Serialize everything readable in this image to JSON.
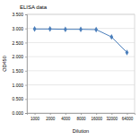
{
  "chart_data": {
    "type": "line",
    "title": "ELISA data",
    "x_label": "Dilution",
    "y_label": "OD450",
    "categories": [
      "1000",
      "2000",
      "4000",
      "8000",
      "16000",
      "32000",
      "64000"
    ],
    "values": [
      2.98,
      2.98,
      2.97,
      2.97,
      2.96,
      2.7,
      2.15
    ],
    "color": "#4a7ebb",
    "marker": "diamond",
    "ylim": [
      0,
      3.5
    ],
    "yticks": [
      {
        "value": 0,
        "label": "0.000"
      },
      {
        "value": 0.5,
        "label": "0.500"
      },
      {
        "value": 1,
        "label": "1.000"
      },
      {
        "value": 1.5,
        "label": "1.500"
      },
      {
        "value": 2,
        "label": "2.000"
      },
      {
        "value": 2.5,
        "label": "2.500"
      },
      {
        "value": 3,
        "label": "3.000"
      },
      {
        "value": 3.5,
        "label": "3.500"
      }
    ],
    "grid": true
  }
}
